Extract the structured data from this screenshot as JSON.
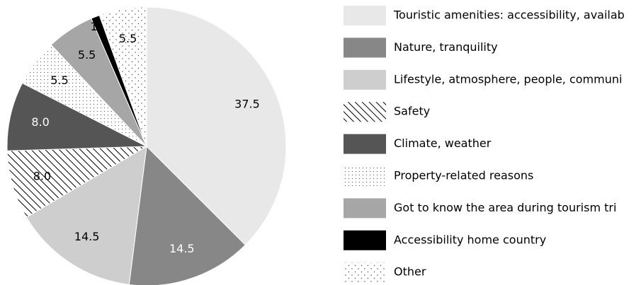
{
  "chart_data": {
    "type": "pie",
    "categories": [
      "Touristic amenities: accessibility, availab",
      "Nature, tranquility",
      "Lifestyle, atmosphere, people, communi",
      "Safety",
      "Climate, weather",
      "Property-related reasons",
      "Got to know the area during tourism tri",
      "Accessibility home country",
      "Other"
    ],
    "values": [
      37.5,
      14.5,
      14.5,
      8.0,
      8.0,
      5.5,
      5.5,
      1.0,
      5.5
    ],
    "value_labels": [
      "37.5",
      "14.5",
      "14.5",
      "8.0",
      "8.0",
      "5.5",
      "5.5",
      "1.0",
      "5.5"
    ],
    "colors": [
      "#e8e8e8",
      "#878787",
      "#cecece",
      "#ffffff",
      "#555555",
      "#ffffff",
      "#a6a6a6",
      "#000000",
      "#ffffff"
    ],
    "patterns": [
      null,
      null,
      null,
      "hatch",
      null,
      "dots",
      null,
      null,
      "sparse-dots"
    ]
  }
}
